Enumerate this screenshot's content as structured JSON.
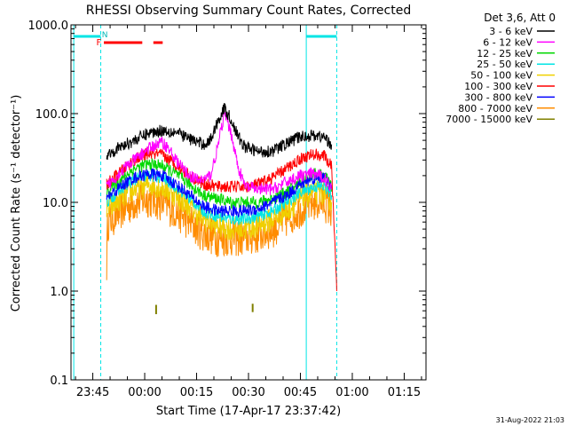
{
  "chart_data": {
    "type": "line",
    "title": "RHESSI Observing Summary Count Rates, Corrected",
    "xlabel": "Start Time (17-Apr-17 23:37:42)",
    "ylabel": "Corrected Count Rate (s⁻¹ detector⁻¹)",
    "yscale": "log",
    "ylim": [
      0.1,
      1000
    ],
    "xlim_minutes": [
      -6.3,
      96.3
    ],
    "x_ticks": [
      {
        "label": "23:45",
        "t": 0
      },
      {
        "label": "00:00",
        "t": 15
      },
      {
        "label": "00:15",
        "t": 30
      },
      {
        "label": "00:30",
        "t": 45
      },
      {
        "label": "00:45",
        "t": 60
      },
      {
        "label": "01:00",
        "t": 75
      },
      {
        "label": "01:15",
        "t": 90
      }
    ],
    "y_ticks": [
      {
        "label": "0.1",
        "v": 0.1
      },
      {
        "label": "1.0",
        "v": 1
      },
      {
        "label": "10.0",
        "v": 10
      },
      {
        "label": "100.0",
        "v": 100
      },
      {
        "label": "1000.0",
        "v": 1000
      }
    ],
    "detector_info": "Det 3,6, Att 0",
    "timestamp": "31-Aug-2022 21:03",
    "flag_labels": {
      "night": "N",
      "flare": "F"
    },
    "series": [
      {
        "name": "3 - 6 keV",
        "color": "#000000",
        "points": [
          [
            4,
            35
          ],
          [
            8,
            42
          ],
          [
            12,
            50
          ],
          [
            16,
            60
          ],
          [
            20,
            65
          ],
          [
            24,
            62
          ],
          [
            28,
            52
          ],
          [
            32,
            45
          ],
          [
            34,
            50
          ],
          [
            36,
            80
          ],
          [
            38,
            115
          ],
          [
            40,
            85
          ],
          [
            42,
            55
          ],
          [
            44,
            42
          ],
          [
            48,
            37
          ],
          [
            52,
            38
          ],
          [
            56,
            46
          ],
          [
            60,
            55
          ],
          [
            64,
            57
          ],
          [
            67,
            54
          ],
          [
            69,
            45
          ]
        ]
      },
      {
        "name": "6 - 12 keV",
        "color": "#ff00ff",
        "points": [
          [
            4,
            15
          ],
          [
            8,
            22
          ],
          [
            12,
            30
          ],
          [
            16,
            40
          ],
          [
            20,
            48
          ],
          [
            22,
            40
          ],
          [
            24,
            30
          ],
          [
            26,
            24
          ],
          [
            28,
            20
          ],
          [
            30,
            18
          ],
          [
            32,
            18
          ],
          [
            34,
            20
          ],
          [
            36,
            40
          ],
          [
            38,
            100
          ],
          [
            40,
            60
          ],
          [
            42,
            25
          ],
          [
            44,
            15
          ],
          [
            48,
            14
          ],
          [
            52,
            14
          ],
          [
            56,
            17
          ],
          [
            60,
            20
          ],
          [
            64,
            21
          ],
          [
            67,
            19
          ],
          [
            69,
            14
          ]
        ]
      },
      {
        "name": "12 - 25 keV",
        "color": "#00d800",
        "points": [
          [
            4,
            13
          ],
          [
            8,
            18
          ],
          [
            12,
            24
          ],
          [
            16,
            27
          ],
          [
            20,
            26
          ],
          [
            24,
            21
          ],
          [
            28,
            16
          ],
          [
            32,
            12
          ],
          [
            36,
            11
          ],
          [
            40,
            10
          ],
          [
            44,
            10
          ],
          [
            48,
            10
          ],
          [
            52,
            11
          ],
          [
            56,
            13
          ],
          [
            60,
            17
          ],
          [
            64,
            21
          ],
          [
            67,
            20
          ],
          [
            69,
            15
          ]
        ]
      },
      {
        "name": "25 - 50 keV",
        "color": "#00e5e5",
        "points": [
          [
            4,
            10
          ],
          [
            8,
            14
          ],
          [
            12,
            18
          ],
          [
            16,
            20
          ],
          [
            20,
            19
          ],
          [
            24,
            15
          ],
          [
            28,
            11
          ],
          [
            32,
            8
          ],
          [
            36,
            7
          ],
          [
            40,
            6.5
          ],
          [
            44,
            6.5
          ],
          [
            48,
            7
          ],
          [
            52,
            8
          ],
          [
            56,
            10
          ],
          [
            60,
            13
          ],
          [
            64,
            15
          ],
          [
            67,
            15
          ],
          [
            69,
            12
          ]
        ]
      },
      {
        "name": "50 - 100 keV",
        "color": "#f0d000",
        "points": [
          [
            4,
            8
          ],
          [
            8,
            11
          ],
          [
            12,
            14
          ],
          [
            16,
            16
          ],
          [
            20,
            15
          ],
          [
            24,
            12
          ],
          [
            28,
            9
          ],
          [
            32,
            6.5
          ],
          [
            36,
            5.5
          ],
          [
            40,
            5
          ],
          [
            44,
            5
          ],
          [
            48,
            5.5
          ],
          [
            52,
            6.5
          ],
          [
            56,
            8
          ],
          [
            60,
            11
          ],
          [
            64,
            13
          ],
          [
            67,
            13
          ],
          [
            69,
            10
          ]
        ]
      },
      {
        "name": "100 - 300 keV",
        "color": "#ff0000",
        "points": [
          [
            4,
            16
          ],
          [
            8,
            22
          ],
          [
            12,
            30
          ],
          [
            16,
            36
          ],
          [
            20,
            34
          ],
          [
            24,
            27
          ],
          [
            28,
            20
          ],
          [
            32,
            16
          ],
          [
            36,
            15
          ],
          [
            40,
            15
          ],
          [
            44,
            15
          ],
          [
            48,
            16
          ],
          [
            52,
            19
          ],
          [
            56,
            24
          ],
          [
            60,
            31
          ],
          [
            64,
            35
          ],
          [
            67,
            33
          ],
          [
            69,
            25
          ],
          [
            70.5,
            1
          ]
        ]
      },
      {
        "name": "300 - 800 keV",
        "color": "#0000ff",
        "points": [
          [
            4,
            11
          ],
          [
            8,
            15
          ],
          [
            12,
            19
          ],
          [
            16,
            21
          ],
          [
            20,
            20
          ],
          [
            24,
            16
          ],
          [
            28,
            12
          ],
          [
            32,
            9
          ],
          [
            36,
            8
          ],
          [
            40,
            8
          ],
          [
            44,
            8
          ],
          [
            48,
            8.5
          ],
          [
            52,
            10
          ],
          [
            56,
            12
          ],
          [
            60,
            16
          ],
          [
            64,
            19
          ],
          [
            67,
            19
          ],
          [
            69,
            14
          ]
        ]
      },
      {
        "name": "800 - 7000 keV",
        "color": "#ff8c00",
        "points": [
          [
            4,
            2
          ],
          [
            4.3,
            6
          ],
          [
            8,
            8
          ],
          [
            12,
            10
          ],
          [
            16,
            11
          ],
          [
            20,
            10
          ],
          [
            24,
            8
          ],
          [
            28,
            6
          ],
          [
            32,
            4.5
          ],
          [
            36,
            4
          ],
          [
            40,
            4
          ],
          [
            44,
            4
          ],
          [
            48,
            4.3
          ],
          [
            52,
            5
          ],
          [
            56,
            6.5
          ],
          [
            60,
            8.5
          ],
          [
            64,
            10
          ],
          [
            67,
            10
          ],
          [
            69,
            8
          ]
        ]
      },
      {
        "name": "7000 - 15000 keV",
        "color": "#808000",
        "points": []
      }
    ]
  }
}
